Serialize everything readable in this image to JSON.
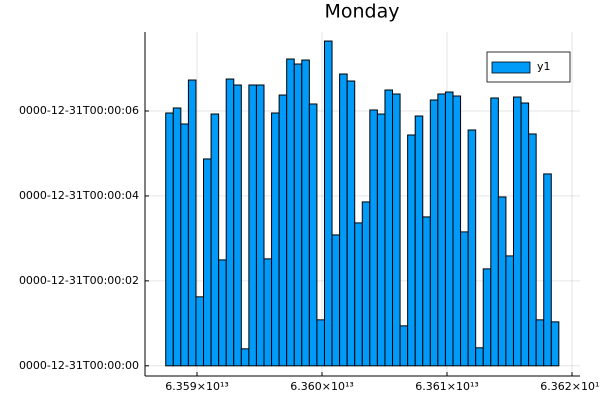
{
  "chart_data": {
    "type": "bar",
    "title": "Monday",
    "x": [
      63587800000000,
      63588404800000,
      63589009600000,
      63589614400000,
      63590219200000,
      63590824000000,
      63591428800000,
      63592033600000,
      63592638400000,
      63593243200000,
      63593848000000,
      63594452800000,
      63595057600000,
      63595662400000,
      63596267200000,
      63596872000000,
      63597476800000,
      63598081600000,
      63598686400000,
      63599291200000,
      63599896000000,
      63600500800000,
      63601105600000,
      63601710400000,
      63602315200000,
      63602920000000,
      63603524800000,
      63604129600000,
      63604734400000,
      63605339200000,
      63605944000000,
      63606548800000,
      63607153600000,
      63607758400000,
      63608363200000,
      63608968000000,
      63609572800000,
      63610177600000,
      63610782400000,
      63611387200000,
      63611992000000,
      63612596800000,
      63613201600000,
      63613806400000,
      63614411200000,
      63615016000000,
      63615620800000,
      63616225600000,
      63616830400000,
      63617435200000,
      63618040000000,
      63618644800000
    ],
    "series": [
      {
        "name": "y1",
        "color": "#009af9",
        "values": [
          5953,
          6071,
          5694,
          6729,
          1624,
          4871,
          5929,
          2494,
          6753,
          6612,
          400,
          6612,
          6612,
          2518,
          5953,
          6376,
          7224,
          7106,
          7200,
          6165,
          1082,
          7647,
          3082,
          6871,
          6706,
          3365,
          3859,
          6024,
          5929,
          6494,
          6400,
          941,
          5435,
          5882,
          3506,
          6259,
          6400,
          6447,
          6353,
          3153,
          5553,
          424,
          2282,
          6306,
          3976,
          2588,
          6329,
          6188,
          5459,
          1082,
          4518,
          1035
        ]
      }
    ],
    "xlim": [
      63585840000000,
      63620640000000
    ],
    "xticks": [
      {
        "value": 63590000000000,
        "label": "6.359×10¹³"
      },
      {
        "value": 63600000000000,
        "label": "6.360×10¹³"
      },
      {
        "value": 63610000000000,
        "label": "6.361×10¹³"
      },
      {
        "value": 63620000000000,
        "label": "6.362×10¹³"
      }
    ],
    "ylim": [
      -240,
      7860
    ],
    "yticks": [
      {
        "value": 0,
        "label": "0000-12-31T00:00:00"
      },
      {
        "value": 2000,
        "label": "0000-12-31T00:00:02"
      },
      {
        "value": 4000,
        "label": "0000-12-31T00:00:04"
      },
      {
        "value": 6000,
        "label": "0000-12-31T00:00:06"
      }
    ],
    "grid": true,
    "legend": "top-right"
  }
}
